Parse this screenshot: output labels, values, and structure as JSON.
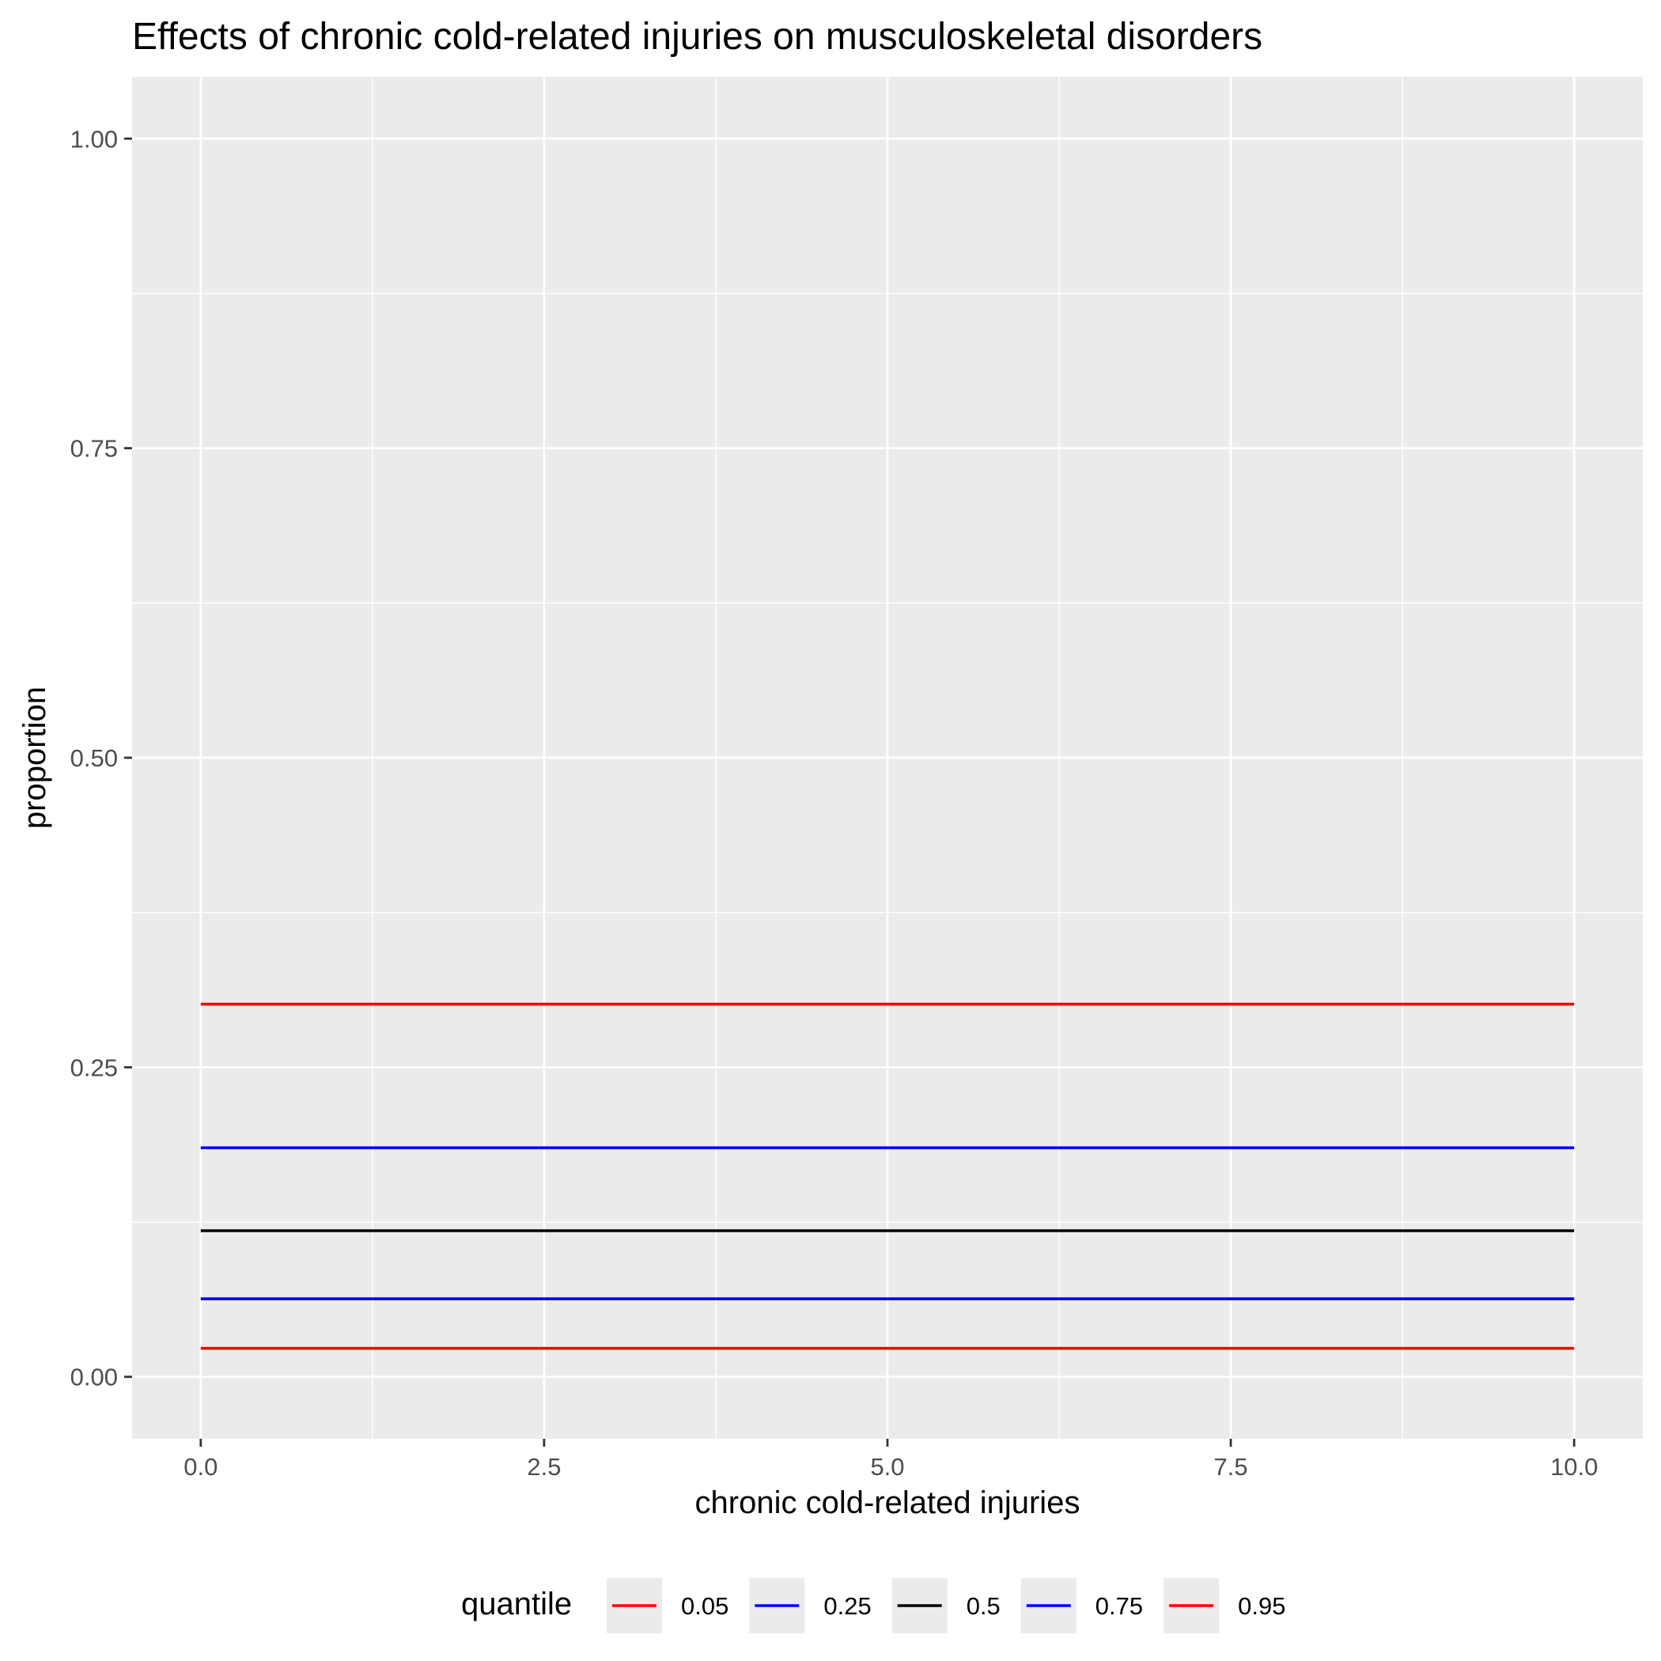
{
  "chart_data": {
    "type": "line",
    "title": "Effects of chronic cold-related injuries on musculoskeletal disorders",
    "xlabel": "chronic cold-related injuries",
    "ylabel": "proportion",
    "xlim": [
      -0.5,
      10.5
    ],
    "ylim": [
      -0.05,
      1.05
    ],
    "x_ticks": [
      0,
      2.5,
      5,
      7.5,
      10
    ],
    "x_tick_labels": [
      "0.0",
      "2.5",
      "5.0",
      "7.5",
      "10.0"
    ],
    "y_ticks": [
      0,
      0.25,
      0.5,
      0.75,
      1
    ],
    "y_tick_labels": [
      "0.00",
      "0.25",
      "0.50",
      "0.75",
      "1.00"
    ],
    "grid": true,
    "legend": {
      "title": "quantile",
      "position": "bottom"
    },
    "x": [
      0,
      10
    ],
    "series": [
      {
        "name": "0.05",
        "color": "#ff0000",
        "values": [
          0.023,
          0.023
        ]
      },
      {
        "name": "0.25",
        "color": "#0000ff",
        "values": [
          0.063,
          0.063
        ]
      },
      {
        "name": "0.5",
        "color": "#000000",
        "values": [
          0.118,
          0.118
        ]
      },
      {
        "name": "0.75",
        "color": "#0000ff",
        "values": [
          0.185,
          0.185
        ]
      },
      {
        "name": "0.95",
        "color": "#ff0000",
        "values": [
          0.301,
          0.301
        ]
      }
    ]
  }
}
